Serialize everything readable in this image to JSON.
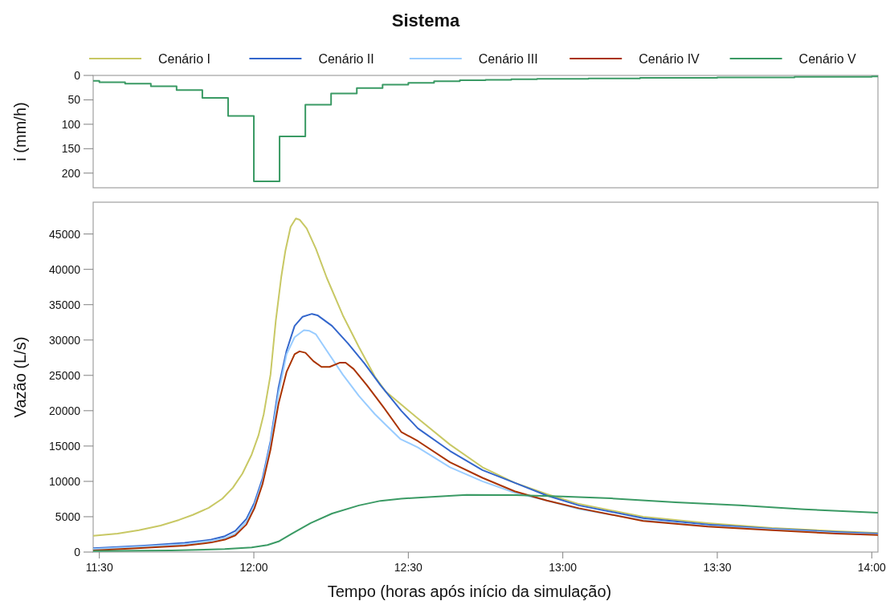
{
  "chart_data": [
    {
      "type": "step",
      "title": "Sistema",
      "ylabel": "i (mm/h)",
      "xlim": [
        11.48,
        14.02
      ],
      "ylim": [
        230,
        0
      ],
      "yticks": [
        0,
        50,
        100,
        150,
        200
      ],
      "tick_labels": "y",
      "series": [
        {
          "color": "#3a9a64",
          "x": [
            11.48,
            11.5,
            11.5833,
            11.6667,
            11.75,
            11.8333,
            11.9167,
            12.0,
            12.0833,
            12.1667,
            12.25,
            12.3333,
            12.4167,
            12.5,
            12.5833,
            12.6667,
            12.75,
            12.8333,
            12.9167,
            13.0,
            13.0833,
            13.1667,
            13.25,
            13.3333,
            13.4167,
            13.5,
            13.5833,
            13.6667,
            13.75,
            13.8333,
            13.9167,
            14.0,
            14.02
          ],
          "values": [
            11,
            14,
            17,
            22,
            30,
            46,
            83,
            217,
            125,
            60,
            37,
            26,
            19,
            15,
            12,
            10,
            9,
            8,
            7,
            7,
            6,
            6,
            5,
            5,
            5,
            4,
            4,
            4,
            3,
            3,
            3,
            2,
            2
          ]
        }
      ]
    },
    {
      "type": "line",
      "xlabel": "Tempo (horas após início da simulação)",
      "ylabel": "Vazão (L/s)",
      "xlim": [
        11.48,
        14.02
      ],
      "xticks": [
        {
          "value": 11.5,
          "label": "11:30"
        },
        {
          "value": 12,
          "label": "12:00"
        },
        {
          "value": 12.5,
          "label": "12:30"
        },
        {
          "value": 13,
          "label": "13:00"
        },
        {
          "value": 13.5,
          "label": "13:30"
        },
        {
          "value": 14,
          "label": "14:00"
        }
      ],
      "ylim": [
        0,
        49500
      ],
      "yticks": [
        0,
        5000,
        10000,
        15000,
        20000,
        25000,
        30000,
        35000,
        40000,
        45000
      ],
      "legend": "top",
      "series": [
        {
          "name": "Cenário I",
          "color": "#c8c864",
          "x": [
            11.48,
            11.559,
            11.628,
            11.698,
            11.758,
            11.802,
            11.854,
            11.898,
            11.932,
            11.963,
            11.993,
            12.015,
            12.032,
            12.054,
            12.071,
            12.089,
            12.102,
            12.119,
            12.136,
            12.149,
            12.171,
            12.201,
            12.236,
            12.288,
            12.34,
            12.392,
            12.427,
            12.531,
            12.635,
            12.74,
            12.844,
            12.948,
            13.052,
            13.26,
            13.469,
            13.677,
            13.885,
            14.02
          ],
          "values": [
            2300,
            2600,
            3100,
            3750,
            4550,
            5250,
            6250,
            7550,
            9100,
            11100,
            13800,
            16500,
            19500,
            25100,
            32700,
            39000,
            42600,
            46000,
            47200,
            47000,
            45800,
            42900,
            38800,
            33500,
            29000,
            24800,
            22700,
            18900,
            15200,
            12000,
            9800,
            8200,
            6800,
            5000,
            4100,
            3400,
            2950,
            2700
          ]
        },
        {
          "name": "Cenário II",
          "color": "#3366cc",
          "x": [
            11.48,
            11.646,
            11.776,
            11.862,
            11.906,
            11.94,
            11.976,
            12.002,
            12.028,
            12.054,
            12.08,
            12.106,
            12.132,
            12.158,
            12.188,
            12.206,
            12.253,
            12.305,
            12.358,
            12.41,
            12.477,
            12.531,
            12.635,
            12.74,
            12.844,
            12.948,
            13.052,
            13.26,
            13.469,
            13.677,
            13.885,
            14.02
          ],
          "values": [
            530,
            900,
            1300,
            1750,
            2250,
            3000,
            4700,
            7000,
            10400,
            15700,
            23300,
            28500,
            32000,
            33300,
            33700,
            33500,
            32000,
            29500,
            26700,
            23600,
            20000,
            17500,
            14300,
            11600,
            9800,
            8000,
            6600,
            4800,
            3900,
            3300,
            2850,
            2600
          ]
        },
        {
          "name": "Cenário III",
          "color": "#99ccff",
          "x": [
            11.48,
            11.646,
            11.776,
            11.862,
            11.906,
            11.94,
            11.976,
            12.002,
            12.028,
            12.054,
            12.08,
            12.106,
            12.132,
            12.162,
            12.18,
            12.201,
            12.236,
            12.288,
            12.34,
            12.392,
            12.427,
            12.474,
            12.531,
            12.635,
            12.74,
            12.844,
            12.948,
            13.052,
            13.26,
            13.469,
            13.677,
            13.885,
            14.02
          ],
          "values": [
            420,
            800,
            1100,
            1600,
            1950,
            2600,
            4300,
            6600,
            10000,
            15300,
            22500,
            28000,
            30400,
            31400,
            31300,
            30800,
            28500,
            25100,
            22100,
            19500,
            18000,
            16000,
            14800,
            12000,
            10000,
            8400,
            7300,
            6100,
            4500,
            3700,
            3200,
            2700,
            2500
          ]
        },
        {
          "name": "Cenário IV",
          "color": "#aa3300",
          "x": [
            11.48,
            11.646,
            11.776,
            11.862,
            11.906,
            11.94,
            11.976,
            12.002,
            12.028,
            12.054,
            12.08,
            12.106,
            12.132,
            12.148,
            12.167,
            12.193,
            12.219,
            12.245,
            12.279,
            12.297,
            12.323,
            12.366,
            12.418,
            12.477,
            12.531,
            12.635,
            12.74,
            12.844,
            12.948,
            13.052,
            13.26,
            13.469,
            13.677,
            13.885,
            14.02
          ],
          "values": [
            230,
            600,
            900,
            1350,
            1750,
            2350,
            3900,
            6200,
            9600,
            14500,
            21000,
            25500,
            28000,
            28400,
            28200,
            27000,
            26200,
            26200,
            26800,
            26800,
            25900,
            23600,
            20600,
            17000,
            15700,
            12700,
            10500,
            8600,
            7300,
            6200,
            4400,
            3600,
            3100,
            2600,
            2400
          ]
        },
        {
          "name": "Cenário V",
          "color": "#3a9a64",
          "x": [
            11.48,
            11.732,
            11.906,
            11.993,
            12.044,
            12.08,
            12.123,
            12.184,
            12.253,
            12.34,
            12.41,
            12.477,
            12.531,
            12.688,
            12.844,
            13.0,
            13.156,
            13.365,
            13.573,
            13.781,
            14.02
          ],
          "values": [
            150,
            230,
            420,
            650,
            1000,
            1500,
            2600,
            4100,
            5450,
            6600,
            7250,
            7550,
            7700,
            8100,
            8050,
            7850,
            7600,
            7050,
            6600,
            6050,
            5550
          ]
        }
      ]
    }
  ]
}
